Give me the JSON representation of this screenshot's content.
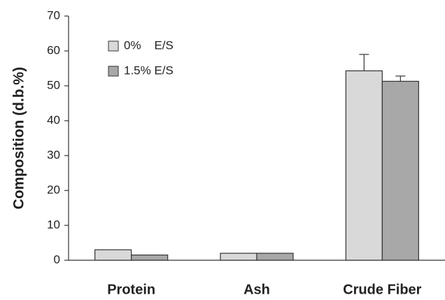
{
  "chart_data": {
    "type": "bar",
    "y_label": "Composition (d.b.%)",
    "categories": [
      "Protein",
      "Ash",
      "Crude Fiber"
    ],
    "series": [
      {
        "name": "0%    E/S",
        "color": "#d9d9d9",
        "values": [
          3,
          2,
          54.3
        ],
        "errors": [
          null,
          null,
          4.7
        ]
      },
      {
        "name": "1.5% E/S",
        "color": "#a8a8a8",
        "values": [
          1.5,
          2,
          51.3
        ],
        "errors": [
          null,
          null,
          1.5
        ]
      }
    ],
    "ylim": [
      0,
      70
    ],
    "yticks": [
      0,
      10,
      20,
      30,
      40,
      50,
      60,
      70
    ],
    "grid": false
  }
}
